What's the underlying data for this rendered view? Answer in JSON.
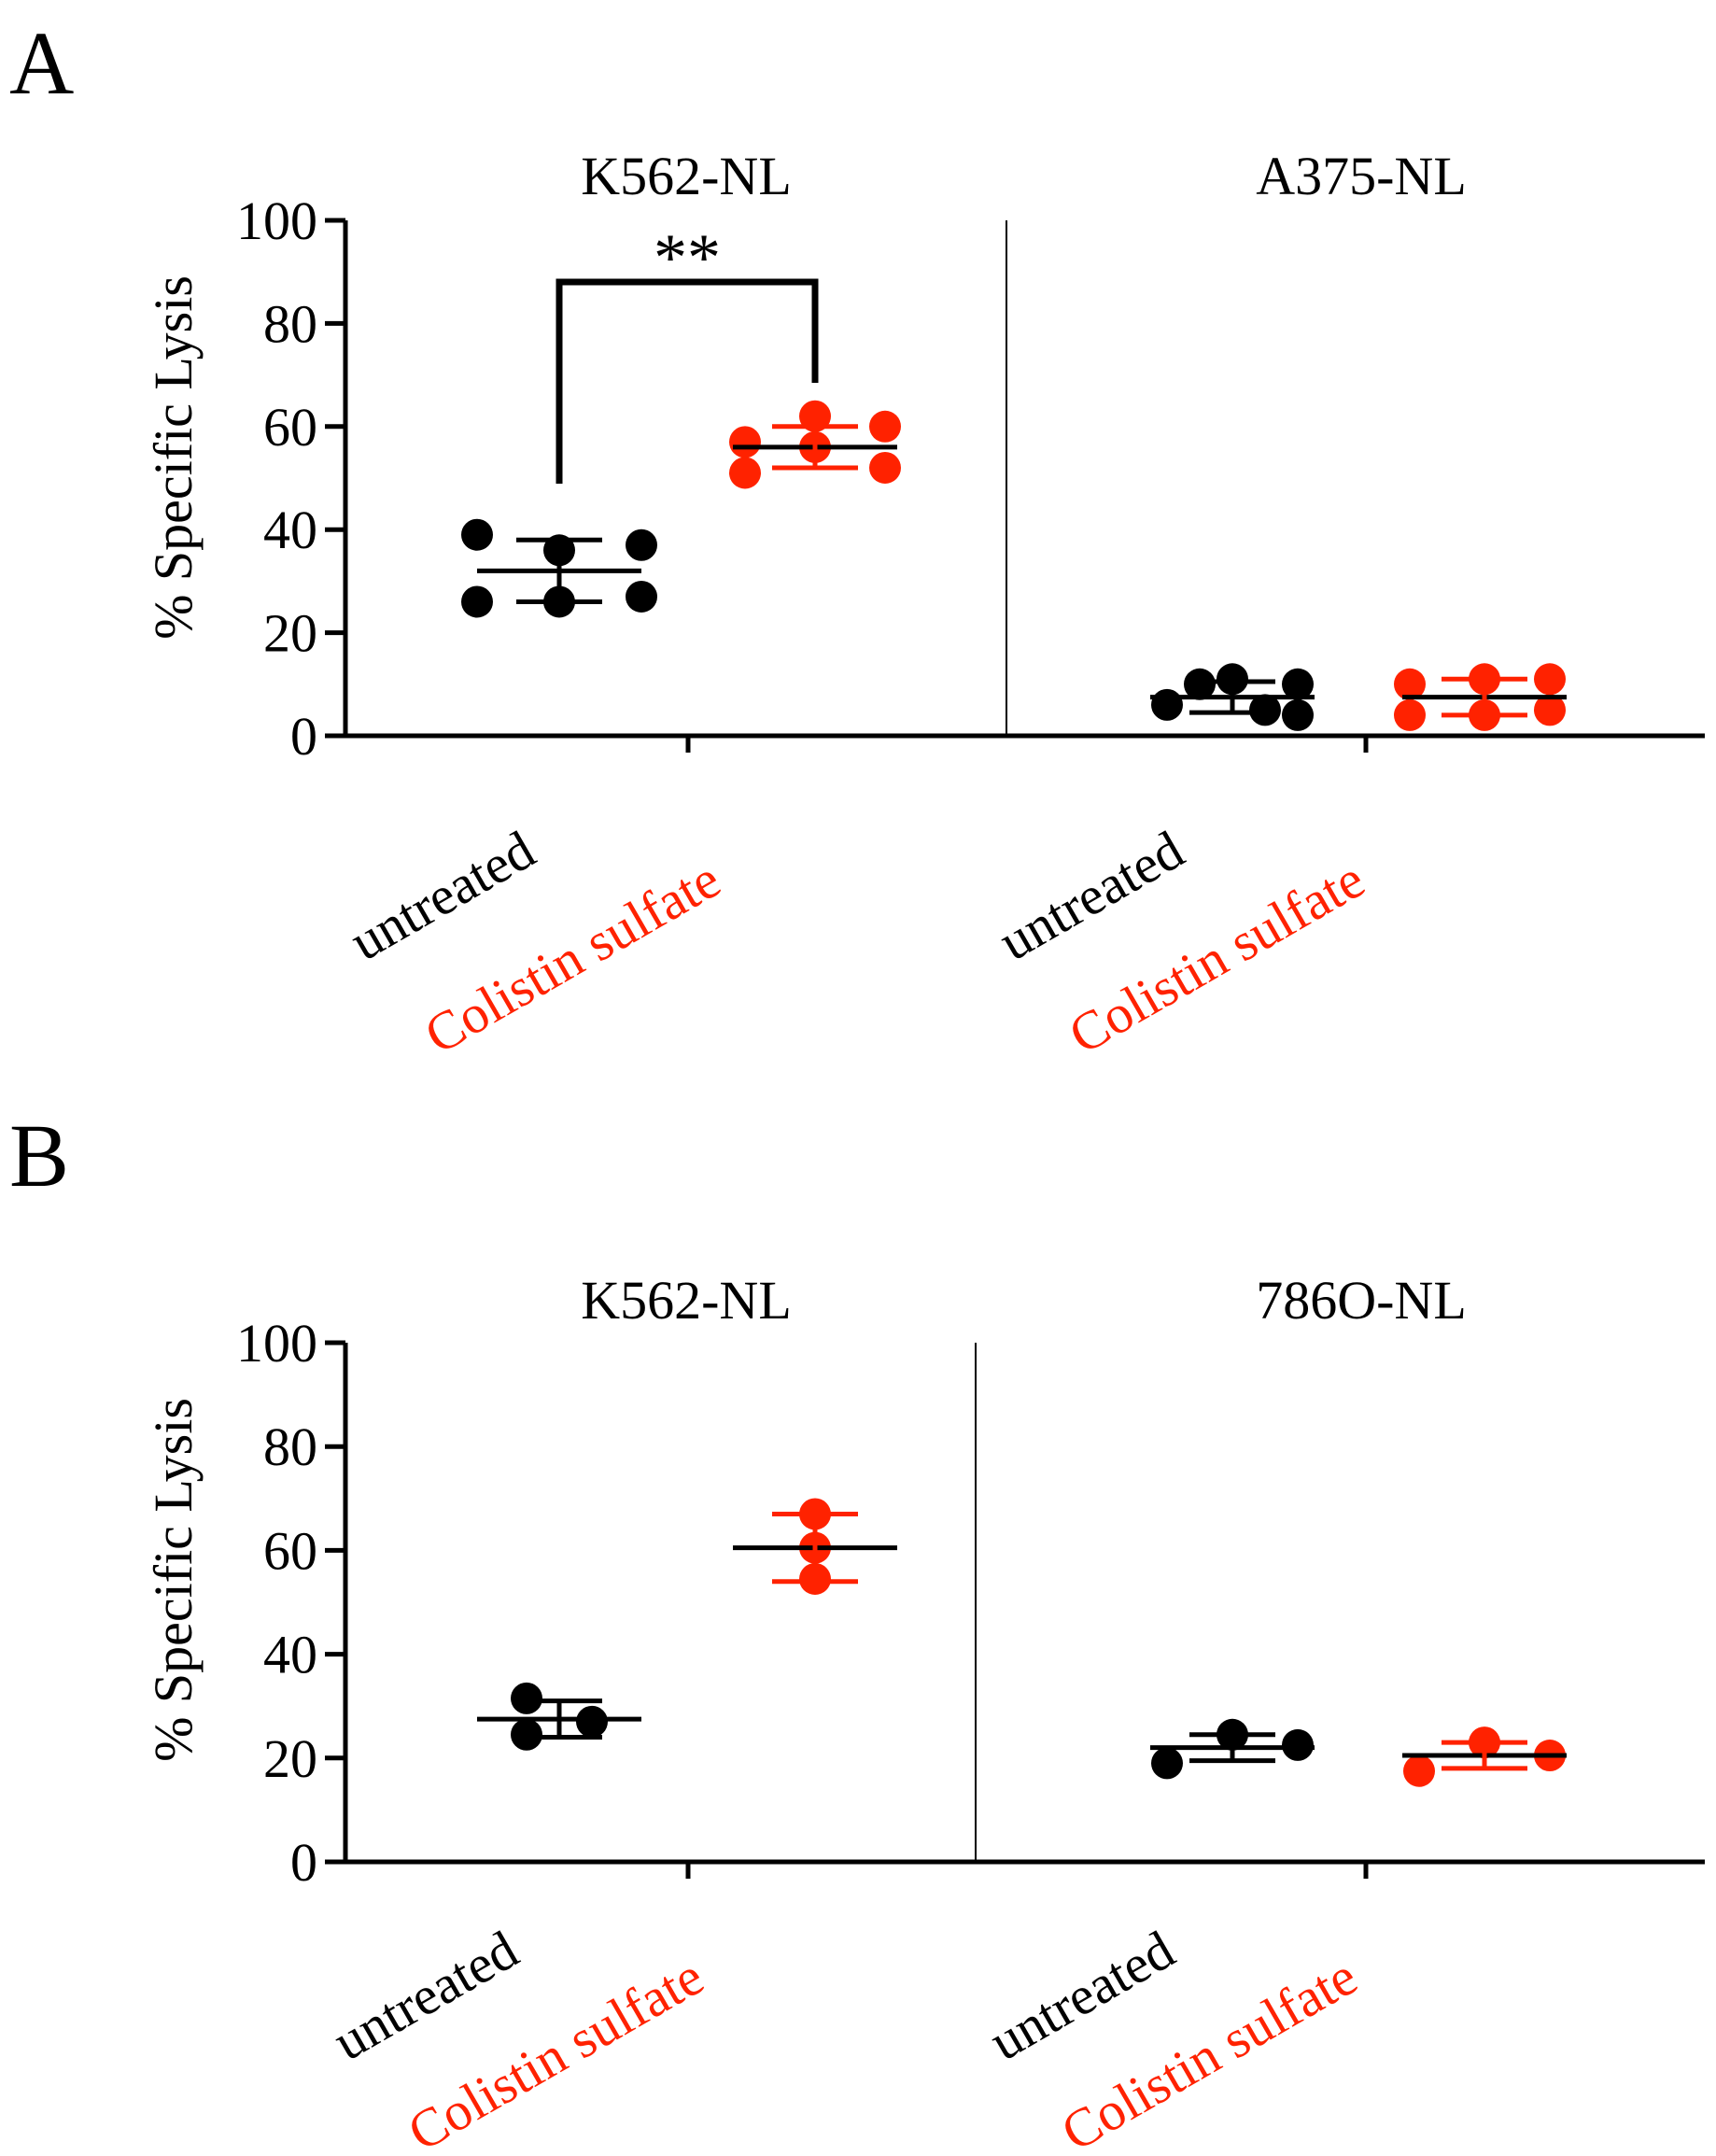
{
  "figure": {
    "colors": {
      "untreated": "#000000",
      "treated": "#ff2200",
      "axis": "#000000"
    }
  },
  "panels": [
    {
      "letter": "A",
      "ylabel": "% Specific Lysis",
      "ticks": [
        "0",
        "20",
        "40",
        "60",
        "80",
        "100"
      ],
      "subpanels": [
        {
          "title": "K562-NL",
          "labels": [
            "untreated",
            "Colistin sulfate"
          ]
        },
        {
          "title": "A375-NL",
          "labels": [
            "untreated",
            "Colistin sulfate"
          ]
        }
      ],
      "significance": "**"
    },
    {
      "letter": "B",
      "ylabel": "% Specific Lysis",
      "ticks": [
        "0",
        "20",
        "40",
        "60",
        "80",
        "100"
      ],
      "subpanels": [
        {
          "title": "K562-NL",
          "labels": [
            "untreated",
            "Colistin sulfate"
          ]
        },
        {
          "title": "786O-NL",
          "labels": [
            "untreated",
            "Colistin sulfate"
          ]
        }
      ]
    }
  ],
  "chart_data": [
    {
      "type": "scatter",
      "panel": "A",
      "ylabel": "% Specific Lysis",
      "ylim": [
        0,
        100
      ],
      "yticks": [
        0,
        20,
        40,
        60,
        80,
        100
      ],
      "grid": false,
      "groups": [
        {
          "cell_line": "K562-NL",
          "condition": "untreated",
          "points": [
            39,
            26,
            36,
            26,
            37,
            27
          ],
          "mean": 32,
          "sd": [
            26,
            38
          ],
          "color": "#000000"
        },
        {
          "cell_line": "K562-NL",
          "condition": "Colistin sulfate",
          "points": [
            57,
            51,
            62,
            56,
            52,
            60
          ],
          "mean": 56,
          "sd": [
            52,
            60
          ],
          "color": "#ff2200"
        },
        {
          "cell_line": "A375-NL",
          "condition": "untreated",
          "points": [
            6,
            10,
            11,
            5,
            10,
            4
          ],
          "mean": 7.5,
          "sd": [
            4.5,
            10.5
          ],
          "color": "#000000"
        },
        {
          "cell_line": "A375-NL",
          "condition": "Colistin sulfate",
          "points": [
            10,
            4,
            11,
            4,
            11,
            5
          ],
          "mean": 7.5,
          "sd": [
            4,
            11
          ],
          "color": "#ff2200"
        }
      ],
      "annotation": {
        "text": "**",
        "between": [
          "K562-NL untreated",
          "K562-NL Colistin sulfate"
        ]
      }
    },
    {
      "type": "scatter",
      "panel": "B",
      "ylabel": "% Specific Lysis",
      "ylim": [
        0,
        100
      ],
      "yticks": [
        0,
        20,
        40,
        60,
        80,
        100
      ],
      "grid": false,
      "groups": [
        {
          "cell_line": "K562-NL",
          "condition": "untreated",
          "points": [
            31.5,
            24.5,
            27
          ],
          "mean": 27.5,
          "sd": [
            24,
            31
          ],
          "color": "#000000"
        },
        {
          "cell_line": "K562-NL",
          "condition": "Colistin sulfate",
          "points": [
            67,
            54.5,
            60.5
          ],
          "mean": 60.5,
          "sd": [
            54,
            67
          ],
          "color": "#ff2200"
        },
        {
          "cell_line": "786O-NL",
          "condition": "untreated",
          "points": [
            19,
            24.5,
            22.5
          ],
          "mean": 22,
          "sd": [
            19.5,
            24.5
          ],
          "color": "#000000"
        },
        {
          "cell_line": "786O-NL",
          "condition": "Colistin sulfate",
          "points": [
            17.5,
            23,
            20.5
          ],
          "mean": 20.5,
          "sd": [
            18,
            23
          ],
          "color": "#ff2200"
        }
      ]
    }
  ]
}
